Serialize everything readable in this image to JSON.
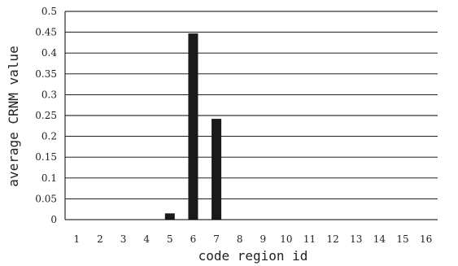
{
  "chart_data": {
    "type": "bar",
    "categories": [
      "1",
      "2",
      "3",
      "4",
      "5",
      "6",
      "7",
      "8",
      "9",
      "10",
      "11",
      "12",
      "13",
      "14",
      "15",
      "16"
    ],
    "values": [
      0,
      0,
      0,
      0,
      0.015,
      0.447,
      0.242,
      0,
      0,
      0,
      0,
      0,
      0,
      0,
      0,
      0
    ],
    "title": "",
    "xlabel": "code region id",
    "ylabel": "average CRNM value",
    "ylim": [
      0,
      0.5
    ],
    "yticks": [
      0,
      0.05,
      0.1,
      0.15,
      0.2,
      0.25,
      0.3,
      0.35,
      0.4,
      0.45,
      0.5
    ],
    "ytick_labels": [
      "0",
      "0.05",
      "0.1",
      "0.15",
      "0.2",
      "0.25",
      "0.3",
      "0.35",
      "0.4",
      "0.45",
      "0.5"
    ],
    "grid": true,
    "bar_color": "#1a1a1a"
  }
}
